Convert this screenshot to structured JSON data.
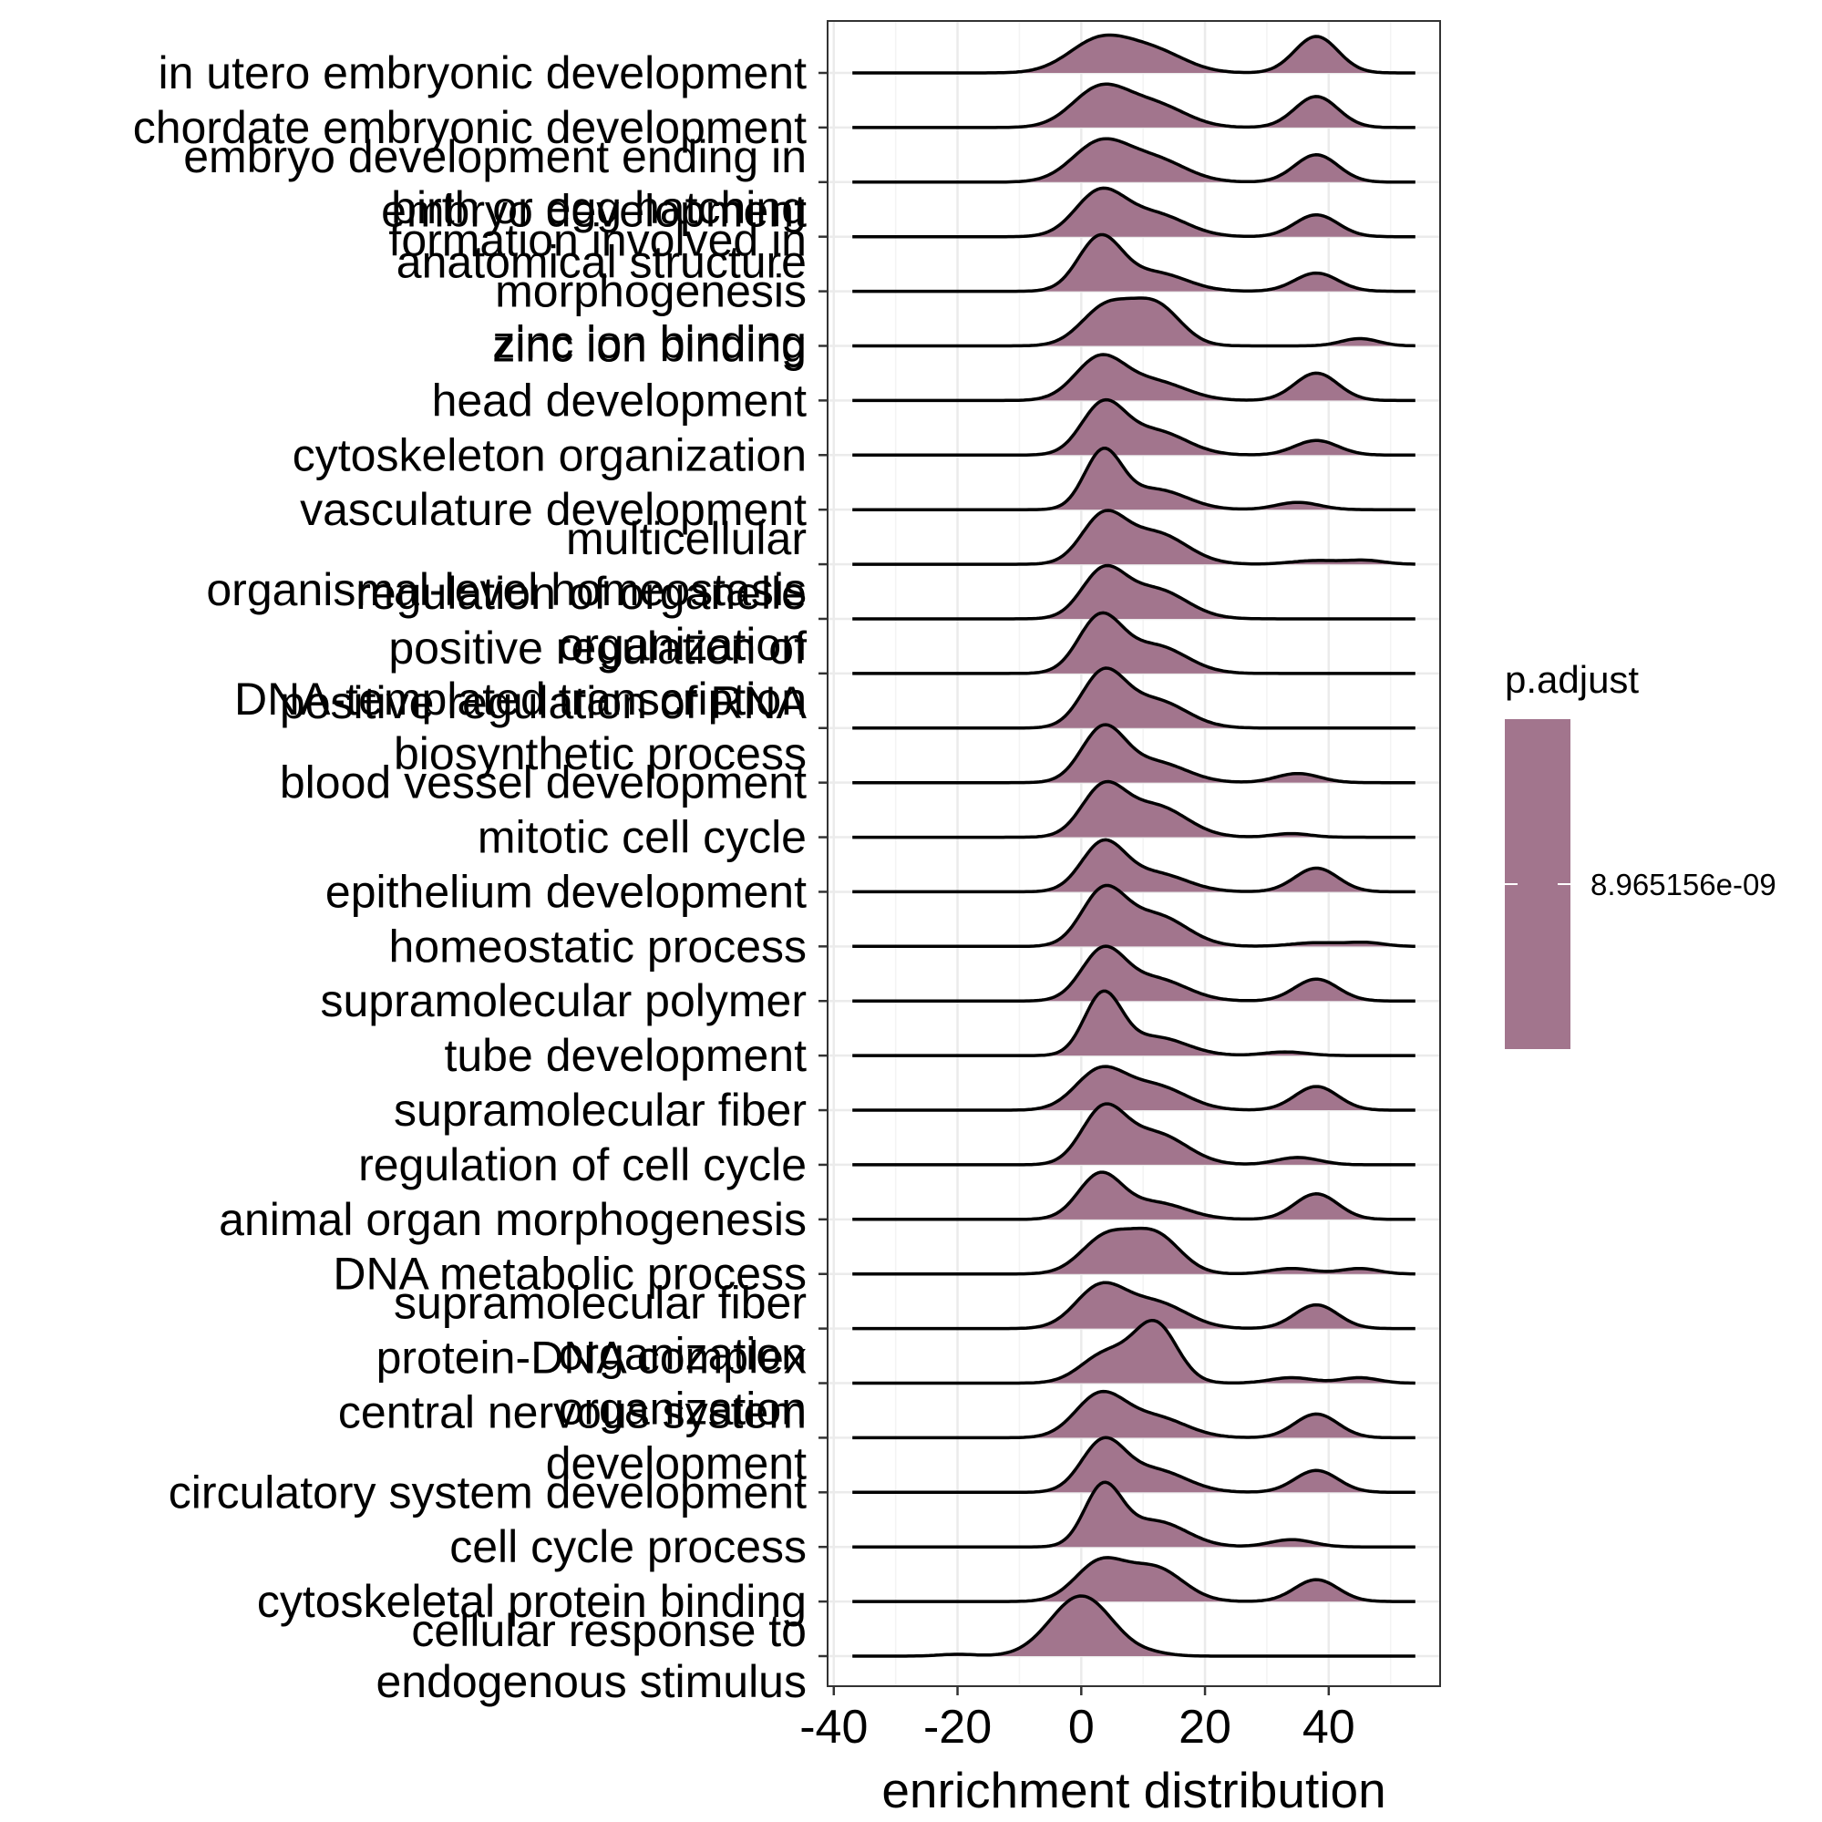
{
  "chart_data": {
    "type": "ridgeline",
    "xlabel": "enrichment distribution",
    "xlim": [
      -41,
      58
    ],
    "x_ticks": [
      -40,
      -20,
      0,
      20,
      40
    ],
    "grid": true,
    "fill_color": "#A2758D",
    "line_color": "#000000",
    "legend": {
      "title": "p.adjust",
      "value": "8.965156e-09",
      "position": "right"
    },
    "x_range": [
      -37,
      54
    ],
    "series": [
      {
        "name": [
          "in utero embryonic development"
        ],
        "peaks": [
          [
            3,
            5,
            0.9
          ],
          [
            12,
            5,
            0.55
          ],
          [
            38,
            3.5,
            1.0
          ]
        ]
      },
      {
        "name": [
          "chordate embryonic development"
        ],
        "peaks": [
          [
            3,
            4.5,
            1.05
          ],
          [
            12,
            5,
            0.6
          ],
          [
            38,
            3.5,
            0.85
          ]
        ]
      },
      {
        "name": [
          "embryo development ending in",
          "birth or egg hatching"
        ],
        "peaks": [
          [
            3,
            4.5,
            1.05
          ],
          [
            12,
            5,
            0.6
          ],
          [
            38,
            3.5,
            0.75
          ]
        ]
      },
      {
        "name": [
          "embryo development",
          "anatomical structure"
        ],
        "peaks": [
          [
            3,
            4,
            1.2
          ],
          [
            12,
            5,
            0.6
          ],
          [
            38,
            3.5,
            0.6
          ]
        ]
      },
      {
        "name": [
          "formation involved in",
          "morphogenesis",
          "zinc ion binding"
        ],
        "peaks": [
          [
            3,
            3.5,
            1.45
          ],
          [
            12,
            5,
            0.5
          ],
          [
            38,
            3.5,
            0.5
          ]
        ]
      },
      {
        "name": [
          "zinc ion binding"
        ],
        "peaks": [
          [
            4,
            4,
            1.05
          ],
          [
            12,
            4,
            1.1
          ],
          [
            45,
            3,
            0.2
          ]
        ]
      },
      {
        "name": [
          "head development"
        ],
        "peaks": [
          [
            3,
            4,
            1.15
          ],
          [
            12,
            5,
            0.5
          ],
          [
            38,
            3.5,
            0.75
          ]
        ]
      },
      {
        "name": [
          "cytoskeleton organization"
        ],
        "peaks": [
          [
            3.5,
            3.5,
            1.35
          ],
          [
            12,
            5,
            0.65
          ],
          [
            38,
            3.5,
            0.4
          ]
        ]
      },
      {
        "name": [
          "vasculature development"
        ],
        "peaks": [
          [
            3.5,
            3,
            1.55
          ],
          [
            12,
            5,
            0.55
          ],
          [
            35,
            3.5,
            0.2
          ]
        ]
      },
      {
        "name": [
          "multicellular",
          "organismal-level homeostasis"
        ],
        "peaks": [
          [
            3.5,
            3.5,
            1.25
          ],
          [
            12,
            5,
            0.85
          ],
          [
            38,
            4,
            0.1
          ],
          [
            46,
            3,
            0.1
          ]
        ]
      },
      {
        "name": [
          "regulation of organelle",
          "organization"
        ],
        "peaks": [
          [
            3.5,
            3.5,
            1.25
          ],
          [
            12,
            5,
            0.8
          ]
        ]
      },
      {
        "name": [
          "positive regulation of",
          "DNA-templated transcription"
        ],
        "peaks": [
          [
            3,
            3.5,
            1.5
          ],
          [
            12,
            5,
            0.75
          ]
        ]
      },
      {
        "name": [
          "positive regulation of RNA",
          "biosynthetic process"
        ],
        "peaks": [
          [
            3.5,
            3.5,
            1.45
          ],
          [
            12,
            5,
            0.75
          ]
        ]
      },
      {
        "name": [
          "blood vessel development"
        ],
        "peaks": [
          [
            3.5,
            3.5,
            1.45
          ],
          [
            12,
            5,
            0.55
          ],
          [
            35,
            3.5,
            0.25
          ]
        ]
      },
      {
        "name": [
          "mitotic cell cycle"
        ],
        "peaks": [
          [
            3.5,
            3.5,
            1.3
          ],
          [
            12,
            5,
            0.85
          ],
          [
            34,
            3,
            0.1
          ]
        ]
      },
      {
        "name": [
          "epithelium development"
        ],
        "peaks": [
          [
            3.5,
            3.5,
            1.3
          ],
          [
            12,
            5,
            0.5
          ],
          [
            38,
            3.5,
            0.65
          ]
        ]
      },
      {
        "name": [
          "homeostatic process"
        ],
        "peaks": [
          [
            3.5,
            3.5,
            1.45
          ],
          [
            12,
            5,
            0.85
          ],
          [
            38,
            4,
            0.1
          ],
          [
            46,
            3,
            0.1
          ]
        ]
      },
      {
        "name": [
          "supramolecular polymer"
        ],
        "peaks": [
          [
            3.5,
            3.5,
            1.35
          ],
          [
            12,
            5,
            0.6
          ],
          [
            38,
            3.5,
            0.6
          ]
        ]
      },
      {
        "name": [
          "tube development"
        ],
        "peaks": [
          [
            3.5,
            3,
            1.65
          ],
          [
            12,
            5,
            0.5
          ],
          [
            33,
            3.5,
            0.1
          ]
        ]
      },
      {
        "name": [
          "supramolecular fiber"
        ],
        "peaks": [
          [
            3,
            4,
            1.05
          ],
          [
            12,
            5,
            0.65
          ],
          [
            38,
            3.5,
            0.65
          ]
        ]
      },
      {
        "name": [
          "regulation of cell cycle"
        ],
        "peaks": [
          [
            3.5,
            3.5,
            1.45
          ],
          [
            12,
            5,
            0.85
          ],
          [
            35,
            3.5,
            0.2
          ]
        ]
      },
      {
        "name": [
          "animal organ morphogenesis"
        ],
        "peaks": [
          [
            3,
            3.5,
            1.2
          ],
          [
            12,
            5,
            0.45
          ],
          [
            38,
            3.5,
            0.7
          ]
        ]
      },
      {
        "name": [
          "DNA metabolic process"
        ],
        "peaks": [
          [
            4,
            4,
            1.0
          ],
          [
            12,
            4,
            1.05
          ],
          [
            34,
            3.5,
            0.15
          ],
          [
            45,
            3,
            0.15
          ]
        ]
      },
      {
        "name": [
          "supramolecular fiber",
          "organization"
        ],
        "peaks": [
          [
            3,
            4,
            1.1
          ],
          [
            12,
            5,
            0.7
          ],
          [
            38,
            3.5,
            0.65
          ]
        ]
      },
      {
        "name": [
          "protein-DNA complex",
          "organization"
        ],
        "peaks": [
          [
            4,
            4,
            0.8
          ],
          [
            12,
            3.5,
            1.6
          ],
          [
            34,
            3.5,
            0.15
          ],
          [
            45,
            3,
            0.15
          ]
        ]
      },
      {
        "name": [
          "central nervous system",
          "development"
        ],
        "peaks": [
          [
            3,
            4,
            1.15
          ],
          [
            12,
            5,
            0.55
          ],
          [
            38,
            3.5,
            0.65
          ]
        ]
      },
      {
        "name": [
          "circulatory system development"
        ],
        "peaks": [
          [
            3.5,
            3.5,
            1.35
          ],
          [
            12,
            5,
            0.6
          ],
          [
            38,
            3.5,
            0.6
          ]
        ]
      },
      {
        "name": [
          "cell cycle process"
        ],
        "peaks": [
          [
            3.5,
            3,
            1.6
          ],
          [
            12,
            5,
            0.7
          ],
          [
            34,
            3.5,
            0.2
          ]
        ]
      },
      {
        "name": [
          "cytoskeletal protein binding"
        ],
        "peaks": [
          [
            3,
            4,
            1.05
          ],
          [
            12,
            4.5,
            0.9
          ],
          [
            38,
            3.5,
            0.6
          ]
        ]
      },
      {
        "name": [
          "cellular response to",
          "endogenous stimulus"
        ],
        "peaks": [
          [
            0,
            5,
            1.65
          ],
          [
            -20,
            3,
            0.05
          ],
          [
            12,
            3,
            0.05
          ]
        ]
      }
    ]
  }
}
